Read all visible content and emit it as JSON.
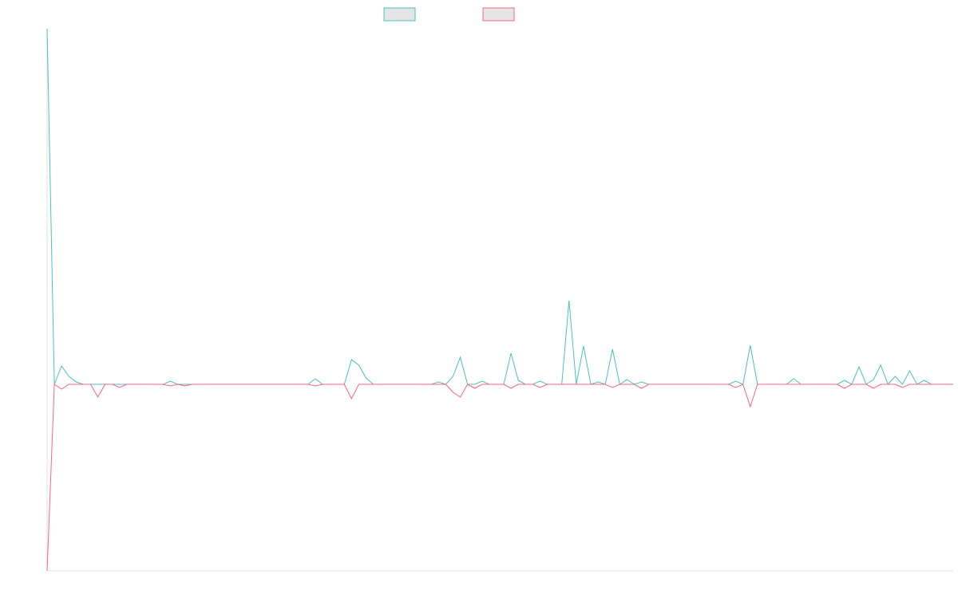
{
  "chart_data": {
    "type": "line",
    "legend": "top",
    "ylim": [
      -234,
      446
    ],
    "series": [
      {
        "color": "#4bc0c0",
        "values": [
          446,
          0,
          23,
          10,
          3,
          0,
          0,
          0,
          0,
          0,
          0,
          0,
          0,
          0,
          0,
          0,
          0,
          4,
          0,
          0,
          0,
          0,
          0,
          0,
          0,
          0,
          0,
          0,
          0,
          0,
          0,
          0,
          0,
          0,
          0,
          0,
          0,
          7,
          0,
          0,
          0,
          0,
          31,
          24,
          8,
          0,
          0,
          0,
          0,
          0,
          0,
          0,
          0,
          0,
          3,
          0,
          10,
          34,
          0,
          0,
          4,
          0,
          0,
          0,
          39,
          5,
          0,
          0,
          4,
          0,
          0,
          0,
          105,
          0,
          48,
          0,
          3,
          0,
          44,
          0,
          6,
          0,
          3,
          0,
          0,
          0,
          0,
          0,
          0,
          0,
          0,
          0,
          0,
          0,
          0,
          4,
          0,
          49,
          0,
          0,
          0,
          0,
          0,
          7,
          0,
          0,
          0,
          0,
          0,
          0,
          5,
          0,
          22,
          0,
          6,
          24,
          0,
          10,
          0,
          17,
          0,
          5,
          0,
          0,
          0,
          0
        ]
      },
      {
        "color": "#ff6384",
        "values": [
          -234,
          0,
          -6,
          0,
          0,
          0,
          0,
          -16,
          0,
          0,
          -4,
          0,
          0,
          0,
          0,
          0,
          0,
          -2,
          0,
          -2,
          0,
          0,
          0,
          0,
          0,
          0,
          0,
          0,
          0,
          0,
          0,
          0,
          0,
          0,
          0,
          0,
          0,
          -2,
          0,
          0,
          0,
          0,
          -18,
          0,
          0,
          0,
          0,
          0,
          0,
          0,
          0,
          0,
          0,
          0,
          0,
          0,
          -10,
          -16,
          0,
          -5,
          0,
          0,
          0,
          0,
          -5,
          0,
          0,
          0,
          -4,
          0,
          0,
          0,
          0,
          0,
          0,
          0,
          0,
          0,
          -4,
          0,
          0,
          0,
          -5,
          0,
          0,
          0,
          0,
          0,
          0,
          0,
          0,
          0,
          0,
          0,
          0,
          -4,
          0,
          -28,
          0,
          0,
          0,
          0,
          0,
          0,
          0,
          0,
          0,
          0,
          0,
          0,
          -5,
          0,
          0,
          0,
          -5,
          0,
          0,
          0,
          -4,
          0,
          0,
          0,
          0,
          0,
          0,
          0
        ]
      }
    ]
  }
}
